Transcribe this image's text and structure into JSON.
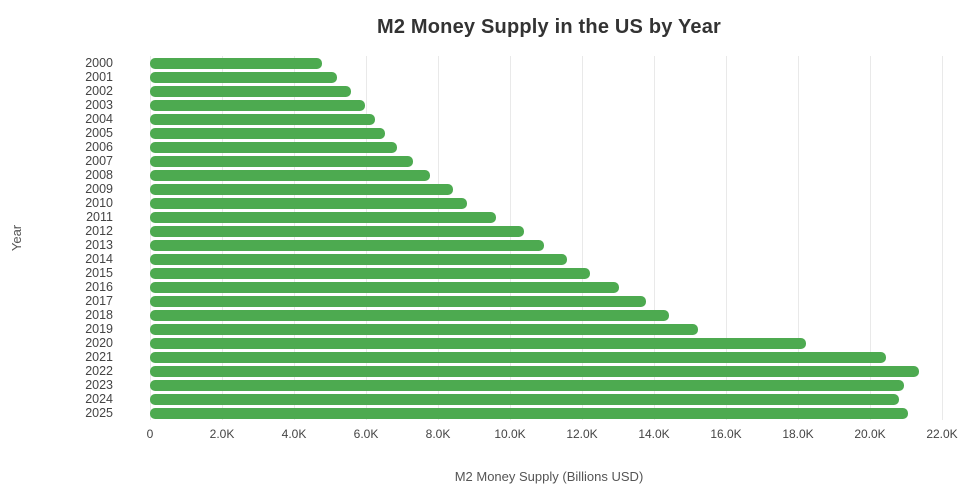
{
  "chart_data": {
    "type": "bar",
    "orientation": "horizontal",
    "title": "M2 Money Supply in the US by Year",
    "xlabel": "M2 Money Supply (Billions USD)",
    "ylabel": "Year",
    "categories": [
      "2000",
      "2001",
      "2002",
      "2003",
      "2004",
      "2005",
      "2006",
      "2007",
      "2008",
      "2009",
      "2010",
      "2011",
      "2012",
      "2013",
      "2014",
      "2015",
      "2016",
      "2017",
      "2018",
      "2019",
      "2020",
      "2021",
      "2022",
      "2023",
      "2024",
      "2025"
    ],
    "values": [
      4780,
      5200,
      5590,
      5980,
      6260,
      6540,
      6870,
      7300,
      7790,
      8410,
      8810,
      9610,
      10400,
      10940,
      11570,
      12220,
      13030,
      13790,
      14430,
      15230,
      18230,
      20450,
      21370,
      20950,
      20800,
      21050
    ],
    "value_unit": "billions USD",
    "xlim": [
      0,
      22000
    ],
    "x_ticks": [
      {
        "value": 0,
        "label": "0"
      },
      {
        "value": 2000,
        "label": "2.0K"
      },
      {
        "value": 4000,
        "label": "4.0K"
      },
      {
        "value": 6000,
        "label": "6.0K"
      },
      {
        "value": 8000,
        "label": "8.0K"
      },
      {
        "value": 10000,
        "label": "10.0K"
      },
      {
        "value": 12000,
        "label": "12.0K"
      },
      {
        "value": 14000,
        "label": "14.0K"
      },
      {
        "value": 16000,
        "label": "16.0K"
      },
      {
        "value": 18000,
        "label": "18.0K"
      },
      {
        "value": 20000,
        "label": "20.0K"
      },
      {
        "value": 22000,
        "label": "22.0K"
      }
    ],
    "grid": "vertical-only",
    "legend": "none"
  },
  "colors": {
    "bar": "#4DAA50",
    "gridline": "#e9e9e9",
    "background": "#ffffff",
    "title_text": "#333333",
    "tick_text": "#444444",
    "axis_title_text": "#555555"
  }
}
